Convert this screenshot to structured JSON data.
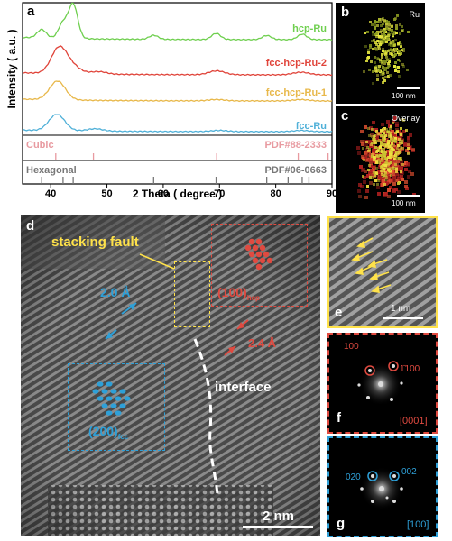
{
  "panels": {
    "a": "a",
    "b": "b",
    "c": "c",
    "d": "d",
    "e": "e",
    "f": "f",
    "g": "g"
  },
  "colors": {
    "hcp": "#6fcf4f",
    "fcc_hcp_2": "#e0443a",
    "fcc_hcp_1": "#e8b84a",
    "fcc": "#4fb0d8",
    "cubic_ref": "#e89aa0",
    "hex_ref": "#777777",
    "yellow_box": "#ffe24a",
    "red_box": "#e04a40",
    "blue_box": "#2ea0d8"
  },
  "chart_data": {
    "type": "line",
    "xlabel": "2 Theta ( degree )",
    "ylabel": "Intensity ( a.u. )",
    "xlim": [
      35,
      90
    ],
    "xticks": [
      40,
      50,
      60,
      70,
      80,
      90
    ],
    "series": [
      {
        "name": "hcp-Ru",
        "peaks": [
          [
            38.4,
            0.25
          ],
          [
            42.2,
            0.45
          ],
          [
            44.0,
            1.0
          ],
          [
            58.3,
            0.12
          ],
          [
            69.4,
            0.18
          ],
          [
            78.4,
            0.12
          ],
          [
            84.7,
            0.16
          ]
        ]
      },
      {
        "name": "fcc-hcp-Ru-2",
        "peaks": [
          [
            41.5,
            0.8
          ],
          [
            44.0,
            0.2
          ],
          [
            48.5,
            0.08
          ],
          [
            69.5,
            0.12
          ],
          [
            84.5,
            0.08
          ]
        ]
      },
      {
        "name": "fcc-hcp-Ru-1",
        "peaks": [
          [
            41.2,
            0.7
          ],
          [
            69.5,
            0.05
          ],
          [
            84.5,
            0.05
          ]
        ]
      },
      {
        "name": "fcc-Ru",
        "peaks": [
          [
            41.1,
            0.7
          ],
          [
            47.9,
            0.1
          ],
          [
            70.0,
            0.05
          ],
          [
            84.5,
            0.05
          ]
        ]
      }
    ],
    "references": [
      {
        "name": "Cubic",
        "label": "PDF#88-2333",
        "positions": [
          40.9,
          47.6,
          69.5,
          84.0,
          89.3
        ]
      },
      {
        "name": "Hexagonal",
        "label": "PDF#06-0663",
        "positions": [
          38.4,
          42.2,
          44.0,
          58.3,
          69.4,
          78.4,
          82.2,
          84.7,
          85.9
        ]
      }
    ]
  },
  "map_b_label": "Ru",
  "map_b_scale": "100 nm",
  "map_c_label": "Overlay",
  "map_c_scale": "100 nm",
  "tem": {
    "stacking_fault": "stacking fault",
    "spacing_fcc": "2.0 Å",
    "spacing_hcp": "2.4 Å",
    "hcp_plane": "(100)",
    "hcp_sub": "hcp",
    "fcc_plane": "(200)",
    "fcc_sub": "fcc",
    "interface": "interface",
    "scale": "2 nm"
  },
  "panel_e_scale": "1 nm",
  "fft_f": {
    "spot1": "100",
    "spot2": "1̄100",
    "zone": "[0001]"
  },
  "fft_g": {
    "spot1": "020",
    "spot2": "002",
    "zone": "[100]"
  }
}
